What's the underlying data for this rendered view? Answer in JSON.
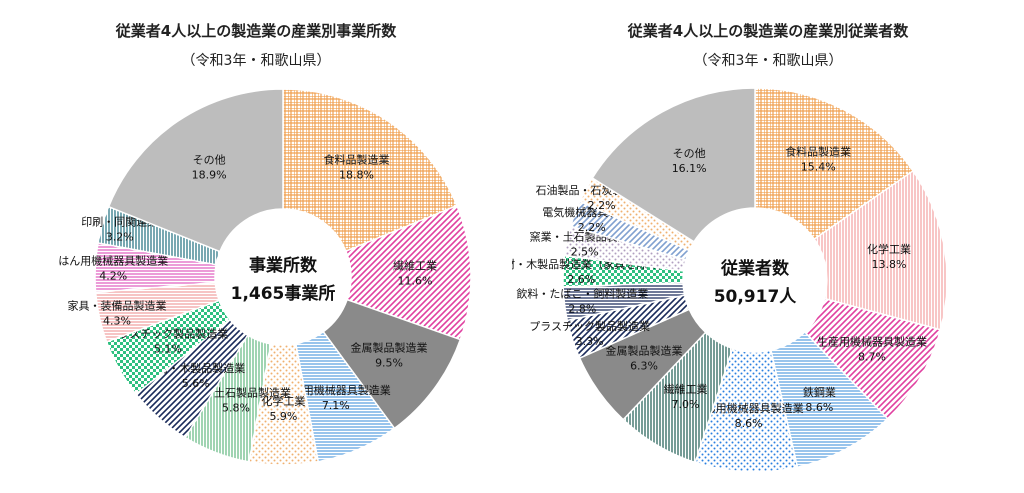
{
  "chart_data": [
    {
      "type": "pie",
      "variant": "donut",
      "title": "従業者4人以上の製造業の産業別事業所数",
      "subtitle": "（令和3年・和歌山県）",
      "center_label": "事業所数",
      "center_value": "1,465事業所",
      "unit": "%",
      "slices": [
        {
          "name": "食料品製造業",
          "value": 18.8,
          "label": "18.8%",
          "color": "#f0a050",
          "pattern": "grid"
        },
        {
          "name": "繊維工業",
          "value": 11.6,
          "label": "11.6%",
          "color": "#e040a0",
          "pattern": "diag"
        },
        {
          "name": "金属製品製造業",
          "value": 9.5,
          "label": "9.5%",
          "color": "#8a8a8a",
          "pattern": "solid"
        },
        {
          "name": "生産用機械器具製造業",
          "value": 7.1,
          "label": "7.1%",
          "color": "#5aa0e0",
          "pattern": "horiz"
        },
        {
          "name": "化学工業",
          "value": 5.9,
          "label": "5.9%",
          "color": "#f0b070",
          "pattern": "dots"
        },
        {
          "name": "窯業・土石製品製造業",
          "value": 5.8,
          "label": "5.8%",
          "color": "#60b880",
          "pattern": "vert"
        },
        {
          "name": "木材・木製品製造業",
          "value": 5.6,
          "label": "5.6%",
          "color": "#1a2a5a",
          "pattern": "diag"
        },
        {
          "name": "プラスチック製品製造業",
          "value": 5.1,
          "label": "5.1%",
          "color": "#2ec080",
          "pattern": "check"
        },
        {
          "name": "家具・装備品製造業",
          "value": 4.3,
          "label": "4.3%",
          "color": "#f0a0a0",
          "pattern": "horiz"
        },
        {
          "name": "はん用機械器具製造業",
          "value": 4.2,
          "label": "4.2%",
          "color": "#e060c0",
          "pattern": "horiz"
        },
        {
          "name": "印刷・同関連業",
          "value": 3.2,
          "label": "3.2%",
          "color": "#207080",
          "pattern": "vert"
        },
        {
          "name": "その他",
          "value": 18.9,
          "label": "18.9%",
          "color": "#bdbdbd",
          "pattern": "solid"
        }
      ]
    },
    {
      "type": "pie",
      "variant": "donut",
      "title": "従業者4人以上の製造業の産業別従業者数",
      "subtitle": "（令和3年・和歌山県）",
      "center_label": "従業者数",
      "center_value": "50,917人",
      "unit": "%",
      "slices": [
        {
          "name": "食料品製造業",
          "value": 15.4,
          "label": "15.4%",
          "color": "#f0a050",
          "pattern": "grid"
        },
        {
          "name": "化学工業",
          "value": 13.8,
          "label": "13.8%",
          "color": "#f4a0a0",
          "pattern": "vert"
        },
        {
          "name": "生産用機械器具製造業",
          "value": 8.7,
          "label": "8.7%",
          "color": "#e040a0",
          "pattern": "diag"
        },
        {
          "name": "鉄鋼業",
          "value": 8.6,
          "label": "8.6%",
          "color": "#5aa0e0",
          "pattern": "horiz"
        },
        {
          "name": "はん用機械器具製造業",
          "value": 8.6,
          "label": "8.6%",
          "color": "#2a80e0",
          "pattern": "dots"
        },
        {
          "name": "繊維工業",
          "value": 7.0,
          "label": "7.0%",
          "color": "#1a5a50",
          "pattern": "vert"
        },
        {
          "name": "金属製品製造業",
          "value": 6.3,
          "label": "6.3%",
          "color": "#8a8a8a",
          "pattern": "solid"
        },
        {
          "name": "プラスチック製品製造業",
          "value": 3.3,
          "label": "3.3%",
          "color": "#1a2a5a",
          "pattern": "diag"
        },
        {
          "name": "飲料・たばこ・飼料製造業",
          "value": 2.8,
          "label": "2.8%",
          "color": "#1a2a5a",
          "pattern": "horiz"
        },
        {
          "name": "木材・木製品製造業（家具を除く）",
          "value": 2.6,
          "label": "2.6%",
          "color": "#2ec080",
          "pattern": "check"
        },
        {
          "name": "窯業・土石製品製造業",
          "value": 2.5,
          "label": "2.5%",
          "color": "#b0a0c0",
          "pattern": "dots"
        },
        {
          "name": "電気機械器具製造業",
          "value": 2.2,
          "label": "2.2%",
          "color": "#80a0d0",
          "pattern": "diag"
        },
        {
          "name": "石油製品・石炭製品製造業",
          "value": 2.2,
          "label": "2.2%",
          "color": "#f0b070",
          "pattern": "dots"
        },
        {
          "name": "その他",
          "value": 16.1,
          "label": "16.1%",
          "color": "#bdbdbd",
          "pattern": "solid"
        }
      ]
    }
  ]
}
